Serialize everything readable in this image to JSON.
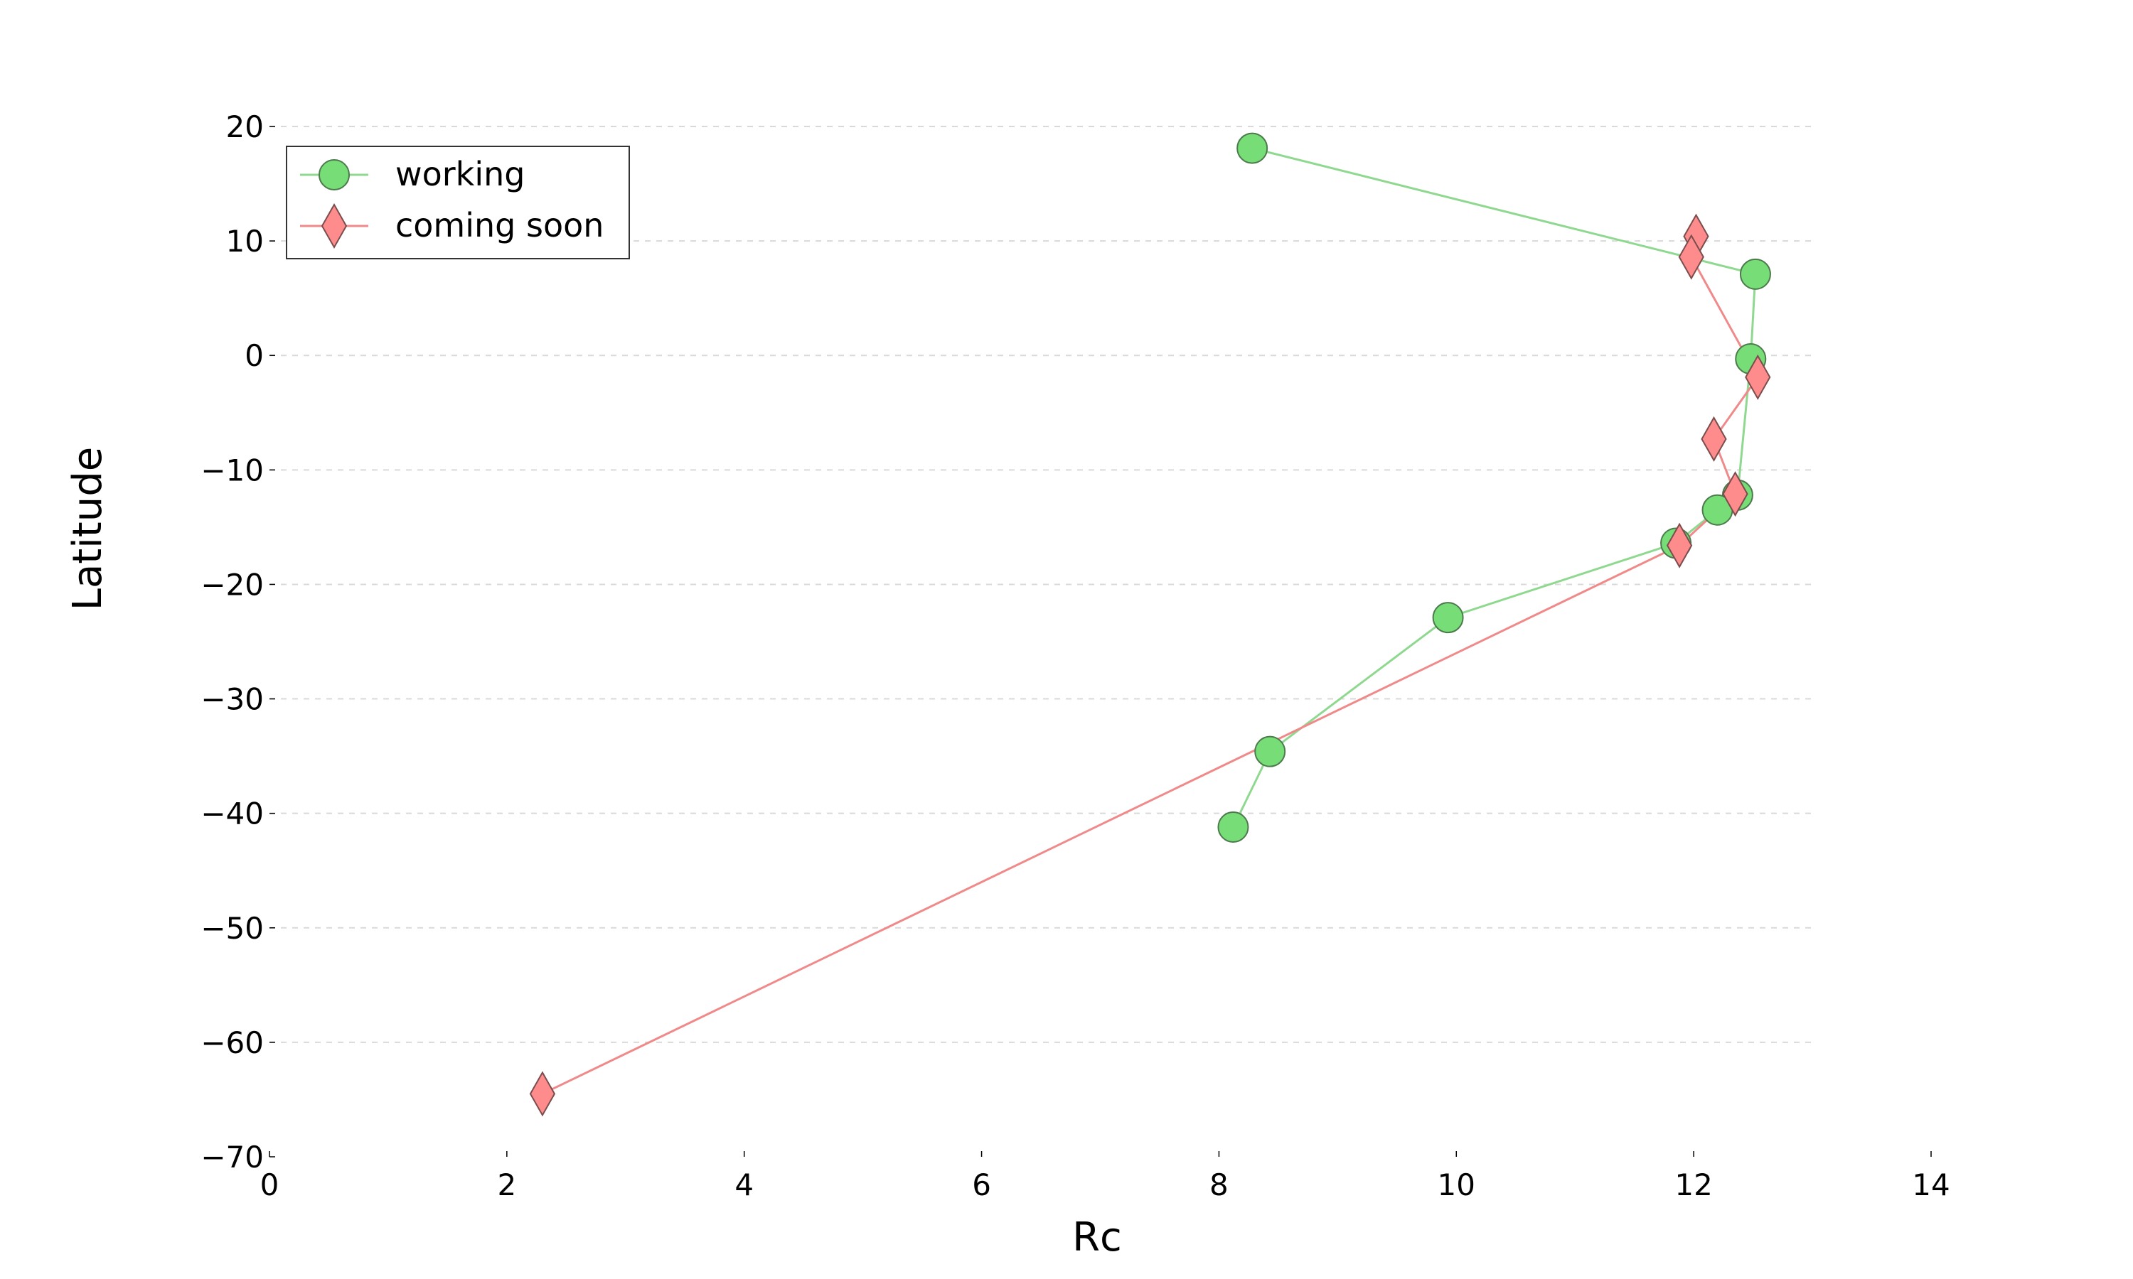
{
  "chart_data": {
    "type": "line",
    "title": "",
    "xlabel": "Rc",
    "ylabel": "Latitude",
    "xlim": [
      0,
      14
    ],
    "ylim": [
      -70,
      20
    ],
    "x_ticks": [
      0,
      2,
      4,
      6,
      8,
      10,
      12,
      14
    ],
    "y_ticks": [
      -70,
      -60,
      -50,
      -40,
      -30,
      -20,
      -10,
      0,
      10,
      20
    ],
    "x_tick_labels": [
      "0",
      "2",
      "4",
      "6",
      "8",
      "10",
      "12",
      "14"
    ],
    "y_tick_labels": [
      "−70",
      "−60",
      "−50",
      "−40",
      "−30",
      "−20",
      "−10",
      "0",
      "10",
      "20"
    ],
    "grid": "horizontal dashed",
    "legend": "top-left",
    "series": [
      {
        "name": "working",
        "marker": "circle",
        "color": "#77dd77",
        "line_color": "#8fd88f",
        "points": [
          {
            "x": 8.28,
            "y": 18.1
          },
          {
            "x": 12.52,
            "y": 7.1
          },
          {
            "x": 12.48,
            "y": -0.3
          },
          {
            "x": 12.37,
            "y": -12.2
          },
          {
            "x": 12.2,
            "y": -13.5
          },
          {
            "x": 11.85,
            "y": -16.4
          },
          {
            "x": 9.93,
            "y": -22.9
          },
          {
            "x": 8.43,
            "y": -34.6
          },
          {
            "x": 8.12,
            "y": -41.2
          }
        ]
      },
      {
        "name": "coming soon",
        "marker": "diamond",
        "color": "#ff8c8c",
        "line_color": "#f08a8a",
        "points": [
          {
            "x": 12.02,
            "y": 10.4
          },
          {
            "x": 11.98,
            "y": 8.6
          },
          {
            "x": 12.54,
            "y": -1.9
          },
          {
            "x": 12.17,
            "y": -7.3
          },
          {
            "x": 12.35,
            "y": -12.1
          },
          {
            "x": 11.88,
            "y": -16.6
          },
          {
            "x": 2.3,
            "y": -64.5
          }
        ]
      }
    ]
  }
}
